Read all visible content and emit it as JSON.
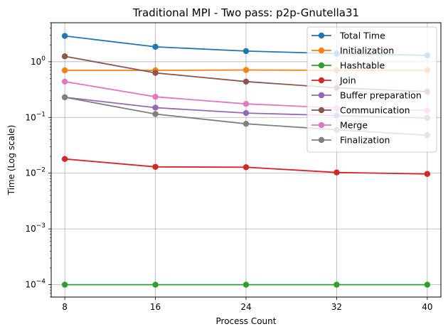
{
  "chart_data": {
    "type": "line",
    "title": "Traditional MPI - Two pass: p2p-Gnutella31",
    "xlabel": "Process Count",
    "ylabel": "Time (Log scale)",
    "x": [
      8,
      16,
      24,
      32,
      40
    ],
    "xlim": [
      6.8,
      41.2
    ],
    "yscale": "log",
    "ylim": [
      6e-05,
      5
    ],
    "y_ticks": [
      {
        "value": 0.0001,
        "base": "10",
        "exp": "−4"
      },
      {
        "value": 0.001,
        "base": "10",
        "exp": "−3"
      },
      {
        "value": 0.01,
        "base": "10",
        "exp": "−2"
      },
      {
        "value": 0.1,
        "base": "10",
        "exp": "−1"
      },
      {
        "value": 1,
        "base": "10",
        "exp": "0"
      }
    ],
    "x_ticks": [
      "8",
      "16",
      "24",
      "32",
      "40"
    ],
    "grid": true,
    "legend_position": "top-right",
    "series": [
      {
        "name": "Total Time",
        "color": "#1f77b4",
        "values": [
          2.9,
          1.85,
          1.55,
          1.4,
          1.3
        ]
      },
      {
        "name": "Initialization",
        "color": "#ff7f0e",
        "values": [
          0.7,
          0.7,
          0.71,
          0.7,
          0.7
        ]
      },
      {
        "name": "Hashtable",
        "color": "#2ca02c",
        "values": [
          0.0001,
          0.0001,
          0.0001,
          0.0001,
          0.0001
        ]
      },
      {
        "name": "Join",
        "color": "#d62728",
        "values": [
          0.018,
          0.013,
          0.0128,
          0.0103,
          0.0097
        ]
      },
      {
        "name": "Buffer preparation",
        "color": "#9467bd",
        "values": [
          0.23,
          0.15,
          0.12,
          0.108,
          0.098
        ]
      },
      {
        "name": "Communication",
        "color": "#8c564b",
        "values": [
          1.25,
          0.63,
          0.44,
          0.34,
          0.29
        ]
      },
      {
        "name": "Merge",
        "color": "#e377c2",
        "values": [
          0.44,
          0.235,
          0.175,
          0.148,
          0.133
        ]
      },
      {
        "name": "Finalization",
        "color": "#7f7f7f",
        "values": [
          0.23,
          0.115,
          0.077,
          0.06,
          0.048
        ]
      }
    ]
  }
}
